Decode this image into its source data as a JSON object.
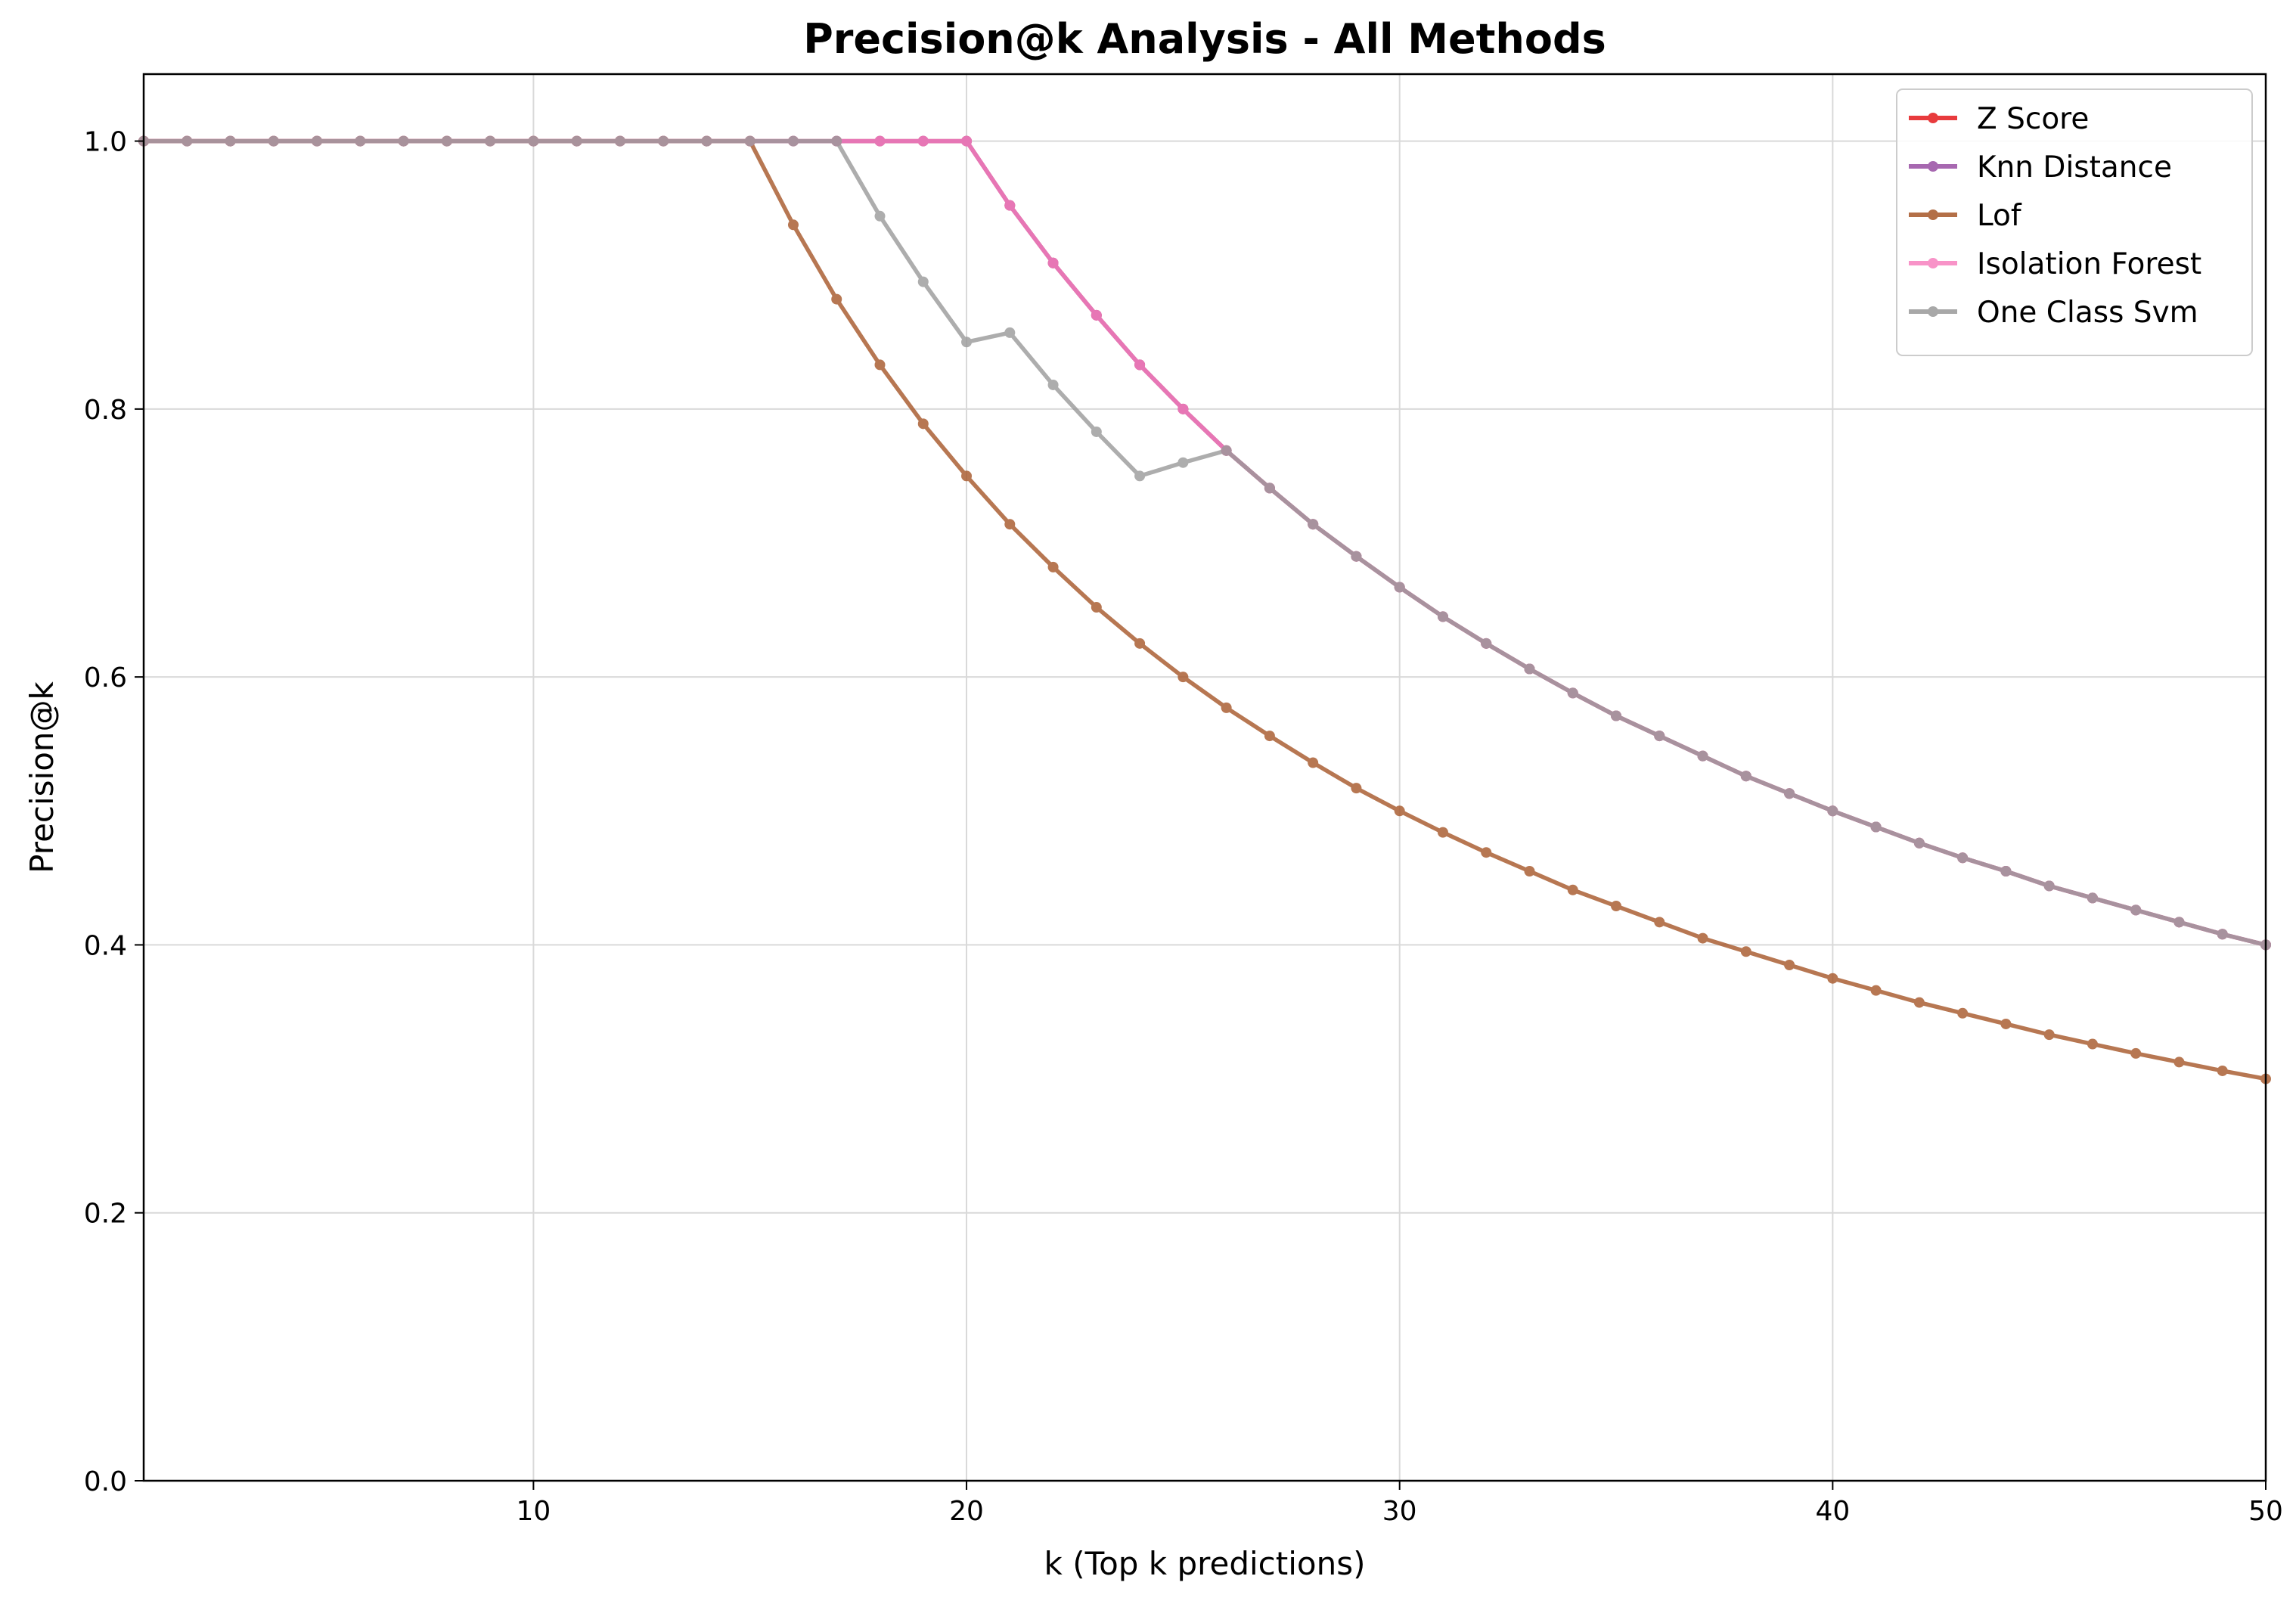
{
  "chart_data": {
    "type": "line",
    "title": "Precision@k Analysis - All Methods",
    "xlabel": "k (Top k predictions)",
    "ylabel": "Precision@k",
    "xlim": [
      1,
      50
    ],
    "ylim": [
      0,
      1.05
    ],
    "xticks": [
      10,
      20,
      30,
      40,
      50
    ],
    "yticks": [
      0.0,
      0.2,
      0.4,
      0.6,
      0.8,
      1.0
    ],
    "ytick_labels": [
      "0.0",
      "0.2",
      "0.4",
      "0.6",
      "0.8",
      "1.0"
    ],
    "grid": true,
    "legend_position": "top-right",
    "x": [
      1,
      2,
      3,
      4,
      5,
      6,
      7,
      8,
      9,
      10,
      11,
      12,
      13,
      14,
      15,
      16,
      17,
      18,
      19,
      20,
      21,
      22,
      23,
      24,
      25,
      26,
      27,
      28,
      29,
      30,
      31,
      32,
      33,
      34,
      35,
      36,
      37,
      38,
      39,
      40,
      41,
      42,
      43,
      44,
      45,
      46,
      47,
      48,
      49,
      50
    ],
    "series": [
      {
        "name": "Z Score",
        "color": "#e41a1c",
        "values": [
          1,
          1,
          1,
          1,
          1,
          1,
          1,
          1,
          1,
          1,
          1,
          1,
          1,
          1,
          1,
          1,
          1,
          1,
          1,
          1,
          0.952,
          0.909,
          0.87,
          0.833,
          0.8,
          0.769,
          0.741,
          0.714,
          0.69,
          0.667,
          0.645,
          0.625,
          0.606,
          0.588,
          0.571,
          0.556,
          0.541,
          0.526,
          0.513,
          0.5,
          0.488,
          0.476,
          0.465,
          0.455,
          0.444,
          0.435,
          0.426,
          0.417,
          0.408,
          0.4
        ]
      },
      {
        "name": "Knn Distance",
        "color": "#984ea3",
        "values": [
          1,
          1,
          1,
          1,
          1,
          1,
          1,
          1,
          1,
          1,
          1,
          1,
          1,
          1,
          1,
          1,
          1,
          1,
          1,
          1,
          0.952,
          0.909,
          0.87,
          0.833,
          0.8,
          0.769,
          0.741,
          0.714,
          0.69,
          0.667,
          0.645,
          0.625,
          0.606,
          0.588,
          0.571,
          0.556,
          0.541,
          0.526,
          0.513,
          0.5,
          0.488,
          0.476,
          0.465,
          0.455,
          0.444,
          0.435,
          0.426,
          0.417,
          0.408,
          0.4
        ]
      },
      {
        "name": "Lof",
        "color": "#a65628",
        "values": [
          1,
          1,
          1,
          1,
          1,
          1,
          1,
          1,
          1,
          1,
          1,
          1,
          1,
          1,
          1,
          0.9375,
          0.882,
          0.833,
          0.789,
          0.75,
          0.714,
          0.682,
          0.652,
          0.625,
          0.6,
          0.577,
          0.556,
          0.536,
          0.517,
          0.5,
          0.484,
          0.469,
          0.455,
          0.441,
          0.429,
          0.417,
          0.405,
          0.395,
          0.385,
          0.375,
          0.366,
          0.357,
          0.349,
          0.341,
          0.333,
          0.326,
          0.319,
          0.3125,
          0.306,
          0.3
        ]
      },
      {
        "name": "Isolation Forest",
        "color": "#f781bf",
        "values": [
          1,
          1,
          1,
          1,
          1,
          1,
          1,
          1,
          1,
          1,
          1,
          1,
          1,
          1,
          1,
          1,
          1,
          1,
          1,
          1,
          0.952,
          0.909,
          0.87,
          0.833,
          0.8,
          0.769,
          0.741,
          0.714,
          0.69,
          0.667,
          0.645,
          0.625,
          0.606,
          0.588,
          0.571,
          0.556,
          0.541,
          0.526,
          0.513,
          0.5,
          0.488,
          0.476,
          0.465,
          0.455,
          0.444,
          0.435,
          0.426,
          0.417,
          0.408,
          0.4
        ]
      },
      {
        "name": "One Class Svm",
        "color": "#999999",
        "values": [
          1,
          1,
          1,
          1,
          1,
          1,
          1,
          1,
          1,
          1,
          1,
          1,
          1,
          1,
          1,
          1,
          1,
          0.944,
          0.895,
          0.85,
          0.857,
          0.818,
          0.783,
          0.75,
          0.76,
          0.769,
          0.741,
          0.714,
          0.69,
          0.667,
          0.645,
          0.625,
          0.606,
          0.588,
          0.571,
          0.556,
          0.541,
          0.526,
          0.513,
          0.5,
          0.488,
          0.476,
          0.465,
          0.455,
          0.444,
          0.435,
          0.426,
          0.417,
          0.408,
          0.4
        ]
      }
    ]
  }
}
